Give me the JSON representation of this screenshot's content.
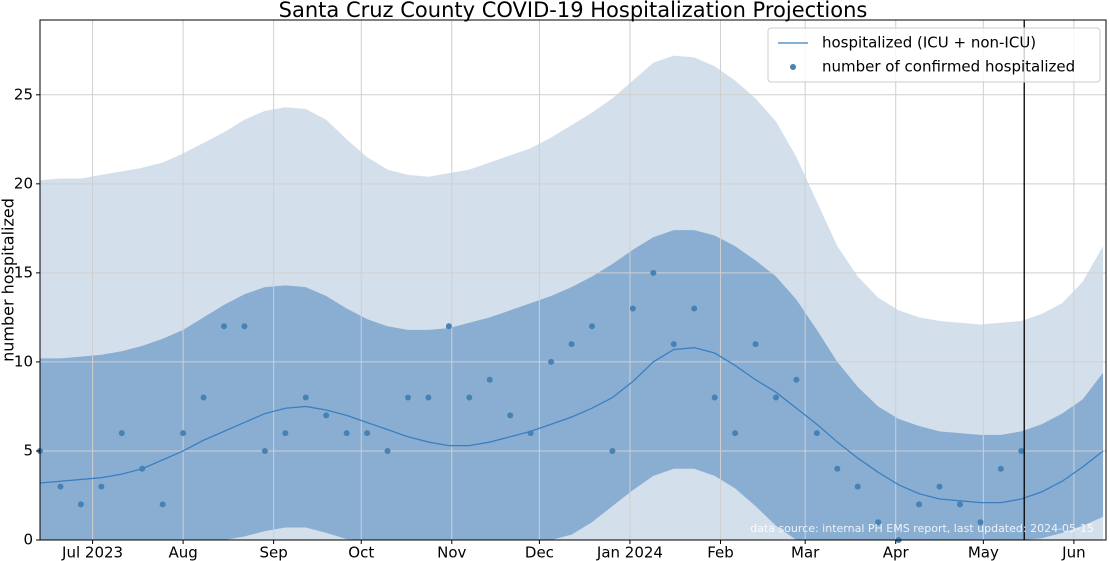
{
  "chart_data": {
    "type": "line",
    "title": "Santa Cruz County COVID-19 Hospitalization Projections",
    "y_label": "number hospitalized",
    "annotation": "data source: internal PH EMS report, last updated: 2024-05-15",
    "x": [
      "2023-06-13",
      "2023-06-20",
      "2023-06-27",
      "2023-07-04",
      "2023-07-11",
      "2023-07-18",
      "2023-07-25",
      "2023-08-01",
      "2023-08-08",
      "2023-08-15",
      "2023-08-22",
      "2023-08-29",
      "2023-09-05",
      "2023-09-12",
      "2023-09-19",
      "2023-09-26",
      "2023-10-03",
      "2023-10-10",
      "2023-10-17",
      "2023-10-24",
      "2023-10-31",
      "2023-11-07",
      "2023-11-14",
      "2023-11-21",
      "2023-11-28",
      "2023-12-05",
      "2023-12-12",
      "2023-12-19",
      "2023-12-26",
      "2024-01-02",
      "2024-01-09",
      "2024-01-16",
      "2024-01-23",
      "2024-01-30",
      "2024-02-06",
      "2024-02-13",
      "2024-02-20",
      "2024-02-27",
      "2024-03-05",
      "2024-03-12",
      "2024-03-19",
      "2024-03-26",
      "2024-04-02",
      "2024-04-09",
      "2024-04-16",
      "2024-04-23",
      "2024-04-30",
      "2024-05-07",
      "2024-05-14",
      "2024-05-21",
      "2024-05-28",
      "2024-06-04",
      "2024-06-11"
    ],
    "xlim": [
      "2023-06-13",
      "2024-06-12"
    ],
    "xticks": [
      {
        "value": "2023-07-01",
        "label": "Jul 2023"
      },
      {
        "value": "2023-08-01",
        "label": "Aug"
      },
      {
        "value": "2023-09-01",
        "label": "Sep"
      },
      {
        "value": "2023-10-01",
        "label": "Oct"
      },
      {
        "value": "2023-11-01",
        "label": "Nov"
      },
      {
        "value": "2023-12-01",
        "label": "Dec"
      },
      {
        "value": "2024-01-01",
        "label": "Jan 2024"
      },
      {
        "value": "2024-02-01",
        "label": "Feb"
      },
      {
        "value": "2024-03-01",
        "label": "Mar"
      },
      {
        "value": "2024-04-01",
        "label": "Apr"
      },
      {
        "value": "2024-05-01",
        "label": "May"
      },
      {
        "value": "2024-06-01",
        "label": "Jun"
      }
    ],
    "ylim": [
      0,
      29.2
    ],
    "yticks": [
      0,
      5,
      10,
      15,
      20,
      25
    ],
    "grid": true,
    "legend": "upper right",
    "vline": "2024-05-15",
    "bands": [
      {
        "color": "#d3e0ec",
        "upper": [
          20.2,
          20.3,
          20.3,
          20.5,
          20.7,
          20.9,
          21.2,
          21.7,
          22.3,
          22.9,
          23.6,
          24.1,
          24.3,
          24.2,
          23.6,
          22.5,
          21.5,
          20.8,
          20.5,
          20.4,
          20.6,
          20.8,
          21.2,
          21.6,
          22.0,
          22.6,
          23.3,
          24.0,
          24.8,
          25.8,
          26.8,
          27.2,
          27.1,
          26.6,
          25.8,
          24.8,
          23.5,
          21.5,
          19.0,
          16.5,
          14.8,
          13.6,
          12.9,
          12.5,
          12.3,
          12.2,
          12.1,
          12.2,
          12.3,
          12.7,
          13.3,
          14.5,
          16.5
        ],
        "lower": [
          0,
          0,
          0,
          0,
          0,
          0,
          0,
          0,
          0,
          0,
          0,
          0,
          0,
          0,
          0,
          0,
          0,
          0,
          0,
          0,
          0,
          0,
          0,
          0,
          0,
          0,
          0,
          0,
          0,
          0,
          0,
          0,
          0,
          0,
          0,
          0,
          0,
          0,
          0,
          0,
          0,
          0,
          0,
          0,
          0,
          0,
          0,
          0,
          0,
          0,
          0,
          0,
          0
        ]
      },
      {
        "color": "#8aaed2",
        "upper": [
          10.2,
          10.2,
          10.3,
          10.4,
          10.6,
          10.9,
          11.3,
          11.8,
          12.5,
          13.2,
          13.8,
          14.2,
          14.3,
          14.2,
          13.7,
          13.0,
          12.4,
          12.0,
          11.8,
          11.8,
          11.9,
          12.2,
          12.5,
          12.9,
          13.3,
          13.7,
          14.2,
          14.8,
          15.5,
          16.3,
          17.0,
          17.4,
          17.4,
          17.1,
          16.5,
          15.7,
          14.8,
          13.5,
          11.8,
          10.0,
          8.6,
          7.5,
          6.8,
          6.4,
          6.1,
          6.0,
          5.9,
          5.9,
          6.1,
          6.5,
          7.1,
          7.9,
          9.4
        ],
        "lower": [
          0,
          0,
          0,
          0,
          0,
          0,
          0,
          0,
          0,
          0,
          0.2,
          0.5,
          0.7,
          0.7,
          0.4,
          0.05,
          0,
          0,
          0,
          0,
          0,
          0,
          0,
          0,
          0,
          0,
          0.3,
          1.0,
          1.9,
          2.8,
          3.6,
          4.0,
          4.0,
          3.6,
          2.9,
          1.9,
          0.8,
          0,
          0,
          0,
          0,
          0,
          0,
          0,
          0,
          0,
          0,
          0,
          0,
          0.1,
          0.4,
          0.8,
          1.3
        ]
      }
    ],
    "series": [
      {
        "name": "hospitalized (ICU + non-ICU)",
        "type": "line",
        "color": "#3b7fc1",
        "values": [
          3.2,
          3.3,
          3.4,
          3.5,
          3.7,
          4.0,
          4.5,
          5.0,
          5.6,
          6.1,
          6.6,
          7.1,
          7.4,
          7.5,
          7.3,
          7.0,
          6.6,
          6.2,
          5.8,
          5.5,
          5.3,
          5.3,
          5.5,
          5.8,
          6.1,
          6.5,
          6.9,
          7.4,
          8.0,
          8.9,
          10.0,
          10.7,
          10.8,
          10.5,
          9.8,
          9.0,
          8.3,
          7.4,
          6.5,
          5.5,
          4.6,
          3.8,
          3.1,
          2.6,
          2.3,
          2.2,
          2.1,
          2.1,
          2.3,
          2.7,
          3.3,
          4.1,
          5.0
        ]
      },
      {
        "name": "number of confirmed hospitalized",
        "type": "scatter",
        "color": "#4682b4",
        "values": [
          5,
          3,
          2,
          3,
          6,
          4,
          2,
          6,
          8,
          12,
          12,
          5,
          6,
          8,
          7,
          6,
          6,
          5,
          8,
          8,
          12,
          8,
          9,
          7,
          6,
          10,
          11,
          12,
          5,
          13,
          15,
          11,
          13,
          8,
          6,
          11,
          8,
          9,
          6,
          4,
          3,
          1,
          0,
          2,
          3,
          2,
          1,
          4,
          5,
          null,
          null,
          null,
          null
        ]
      }
    ]
  }
}
